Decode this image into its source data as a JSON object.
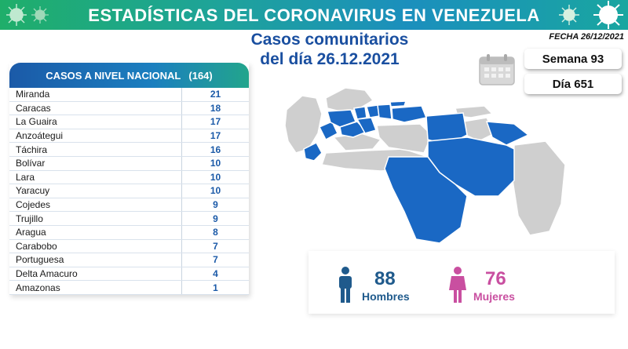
{
  "header": {
    "title": "ESTADÍSTICAS DEL CORONAVIRUS EN VENEZUELA",
    "subtitle_line1": "Casos comunitarios",
    "subtitle_line2": "del día 26.12.2021",
    "fecha": "FECHA 26/12/2021"
  },
  "colors": {
    "primary_blue": "#1b5aa8",
    "map_blue": "#1a68c4",
    "map_gray": "#c8c8c8",
    "banner_green": "#1fae6a",
    "women_pink": "#c94fa0",
    "men_blue": "#1f5a8c"
  },
  "table": {
    "header_label": "CASOS A NIVEL NACIONAL",
    "header_total": "(164)",
    "rows": [
      {
        "name": "Miranda",
        "value": "21"
      },
      {
        "name": "Caracas",
        "value": "18"
      },
      {
        "name": "La Guaira",
        "value": "17"
      },
      {
        "name": "Anzoátegui",
        "value": "17"
      },
      {
        "name": "Táchira",
        "value": "16"
      },
      {
        "name": "Bolívar",
        "value": "10"
      },
      {
        "name": "Lara",
        "value": "10"
      },
      {
        "name": "Yaracuy",
        "value": "10"
      },
      {
        "name": "Cojedes",
        "value": "9"
      },
      {
        "name": "Trujillo",
        "value": "9"
      },
      {
        "name": "Aragua",
        "value": "8"
      },
      {
        "name": "Carabobo",
        "value": "7"
      },
      {
        "name": "Portuguesa",
        "value": "7"
      },
      {
        "name": "Delta Amacuro",
        "value": "4"
      },
      {
        "name": "Amazonas",
        "value": "1"
      }
    ]
  },
  "stats": {
    "semana": "Semana 93",
    "dia": "Día 651",
    "calendar_icon": "calendar-icon"
  },
  "gender": {
    "men_count": "88",
    "men_label": "Hombres",
    "women_count": "76",
    "women_label": "Mujeres",
    "men_icon": "man-icon",
    "women_icon": "woman-icon"
  }
}
